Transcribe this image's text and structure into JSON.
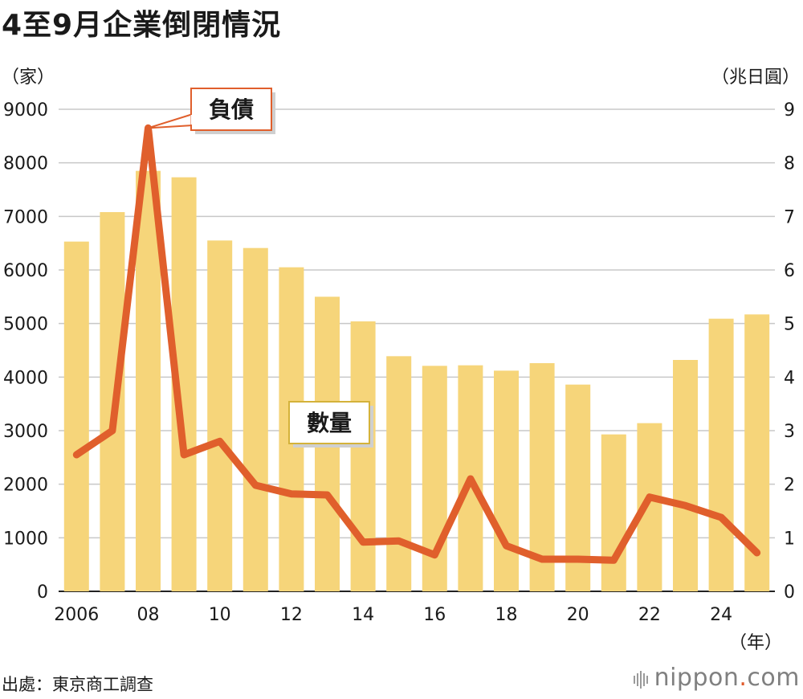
{
  "title": "4至9月企業倒閉情況",
  "left_unit": "（家）",
  "right_unit": "（兆日圓）",
  "x_unit": "（年）",
  "source": "出處：東京商工調查",
  "logo": {
    "text": "nippon",
    "dot": ".",
    "suffix": "com"
  },
  "colors": {
    "bar": "#f6d57a",
    "line": "#e05f2c",
    "grid": "#c8c8c8",
    "callout_border": "#e05f2c",
    "callout_border2": "#d4b23a"
  },
  "chart_data": {
    "type": "bar",
    "title": "4至9月企業倒閉情況",
    "years": [
      2006,
      2007,
      2008,
      2009,
      2010,
      2011,
      2012,
      2013,
      2014,
      2015,
      2016,
      2017,
      2018,
      2019,
      2020,
      2021,
      2022,
      2023,
      2024,
      2025
    ],
    "x_tick_labels": [
      "2006",
      "",
      "08",
      "",
      "10",
      "",
      "12",
      "",
      "14",
      "",
      "16",
      "",
      "18",
      "",
      "20",
      "",
      "22",
      "",
      "24",
      ""
    ],
    "y_left_ticks": [
      "0",
      "1000",
      "2000",
      "3000",
      "4000",
      "5000",
      "6000",
      "7000",
      "8000",
      "9000"
    ],
    "y_right_ticks": [
      "0",
      "1",
      "2",
      "3",
      "4",
      "5",
      "6",
      "7",
      "8",
      "9"
    ],
    "ylim_left": [
      0,
      9000
    ],
    "ylim_right": [
      0,
      9
    ],
    "series": [
      {
        "name": "數量",
        "type": "bar",
        "axis": "left",
        "values": [
          6530,
          7080,
          7850,
          7730,
          6550,
          6410,
          6050,
          5500,
          5040,
          4390,
          4210,
          4220,
          4120,
          4260,
          3860,
          2930,
          3140,
          4320,
          5090,
          5170
        ]
      },
      {
        "name": "負債",
        "type": "line",
        "axis": "right",
        "values": [
          2.55,
          3.0,
          8.65,
          2.55,
          2.8,
          1.98,
          1.82,
          1.8,
          0.92,
          0.94,
          0.68,
          2.1,
          0.85,
          0.6,
          0.6,
          0.58,
          1.76,
          1.6,
          1.38,
          0.72
        ]
      }
    ],
    "annotations": [
      "負債",
      "數量"
    ]
  }
}
